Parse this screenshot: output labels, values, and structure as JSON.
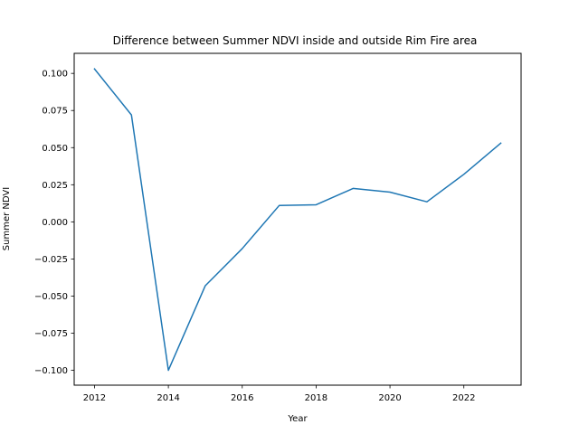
{
  "chart_data": {
    "type": "line",
    "title": "Difference between Summer NDVI inside and outside Rim Fire area",
    "xlabel": "Year",
    "ylabel": "Summer NDVI",
    "xlim": [
      2011.45,
      2023.55
    ],
    "ylim": [
      -0.11,
      0.1135
    ],
    "x_ticks": [
      2012,
      2014,
      2016,
      2018,
      2020,
      2022
    ],
    "x_tick_labels": [
      "2012",
      "2014",
      "2016",
      "2018",
      "2020",
      "2022"
    ],
    "y_ticks": [
      0.1,
      0.075,
      0.05,
      0.025,
      0.0,
      -0.025,
      -0.05,
      -0.075,
      -0.1
    ],
    "y_tick_labels": [
      "0.100",
      "0.075",
      "0.050",
      "0.025",
      "0.000",
      "−0.025",
      "−0.050",
      "−0.075",
      "−0.100"
    ],
    "grid": false,
    "legend": "none",
    "line_color": "#1f77b4",
    "series": [
      {
        "x": [
          2012,
          2013,
          2014,
          2015,
          2016,
          2017,
          2018,
          2019,
          2020,
          2021,
          2022,
          2023
        ],
        "values": [
          0.103,
          0.072,
          -0.1,
          -0.043,
          -0.018,
          0.011,
          0.0115,
          0.0225,
          0.02,
          0.0135,
          0.032,
          0.053
        ]
      }
    ]
  }
}
